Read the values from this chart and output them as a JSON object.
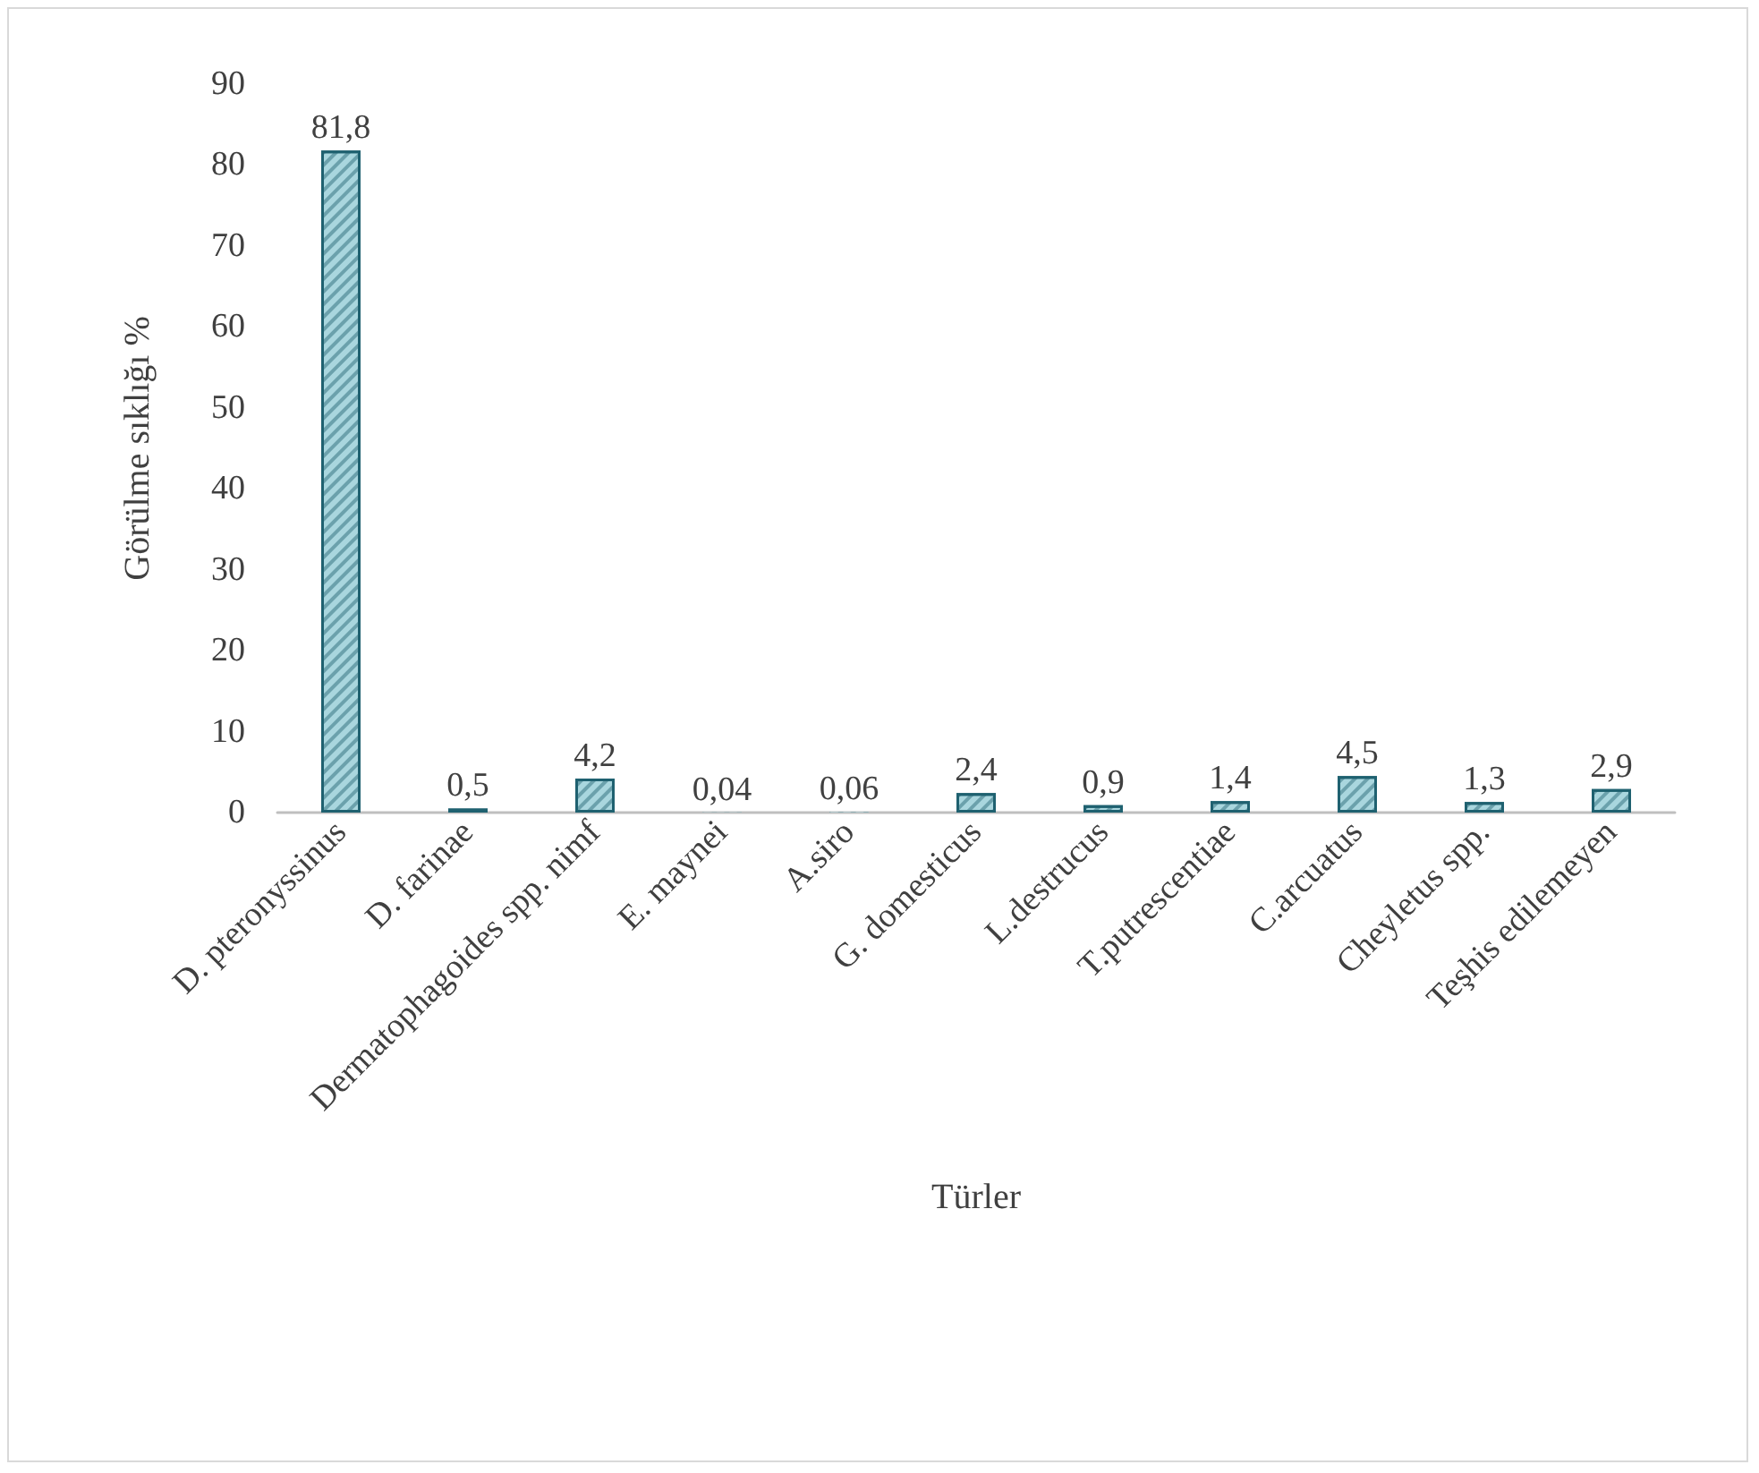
{
  "chart_data": {
    "type": "bar",
    "xlabel": "Türler",
    "ylabel": "Görülme sıklığı %",
    "categories": [
      "D. pteronyssinus",
      "D. farinae",
      "Dermatophagoides spp. nimf",
      "E. maynei",
      "A.siro",
      "G. domesticus",
      "L.destrucus",
      "T.putrescentiae",
      "C.arcuatus",
      "Cheyletus spp.",
      "Teşhis edilemeyen"
    ],
    "values": [
      81.8,
      0.5,
      4.2,
      0.04,
      0.06,
      2.4,
      0.9,
      1.4,
      4.5,
      1.3,
      2.9
    ],
    "value_labels": [
      "81,8",
      "0,5",
      "4,2",
      "0,04",
      "0,06",
      "2,4",
      "0,9",
      "1,4",
      "4,5",
      "1,3",
      "2,9"
    ],
    "color": "#a9d6de",
    "ylim": [
      0,
      90
    ],
    "yticks": [
      0,
      10,
      20,
      30,
      40,
      50,
      60,
      70,
      80,
      90
    ],
    "grid": false
  }
}
